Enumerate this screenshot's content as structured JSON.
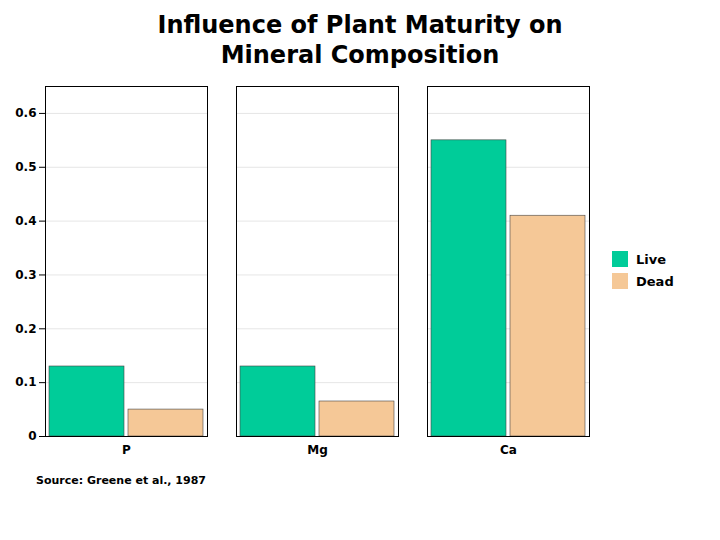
{
  "chart_data": {
    "type": "bar",
    "title": "Influence of Plant Maturity on\nMineral Composition",
    "caption": "Source: Greene et al., 1987",
    "categories": [
      "P",
      "Mg",
      "Ca"
    ],
    "series": [
      {
        "name": "Live",
        "color": "#00CC99",
        "values": [
          0.13,
          0.13,
          0.55
        ]
      },
      {
        "name": "Dead",
        "color": "#F5C897",
        "values": [
          0.05,
          0.065,
          0.41
        ]
      }
    ],
    "ylim": [
      0,
      0.65
    ],
    "yticks": [
      0,
      0.1,
      0.2,
      0.3,
      0.4,
      0.5,
      0.6
    ],
    "grid": true,
    "legend": "right"
  }
}
